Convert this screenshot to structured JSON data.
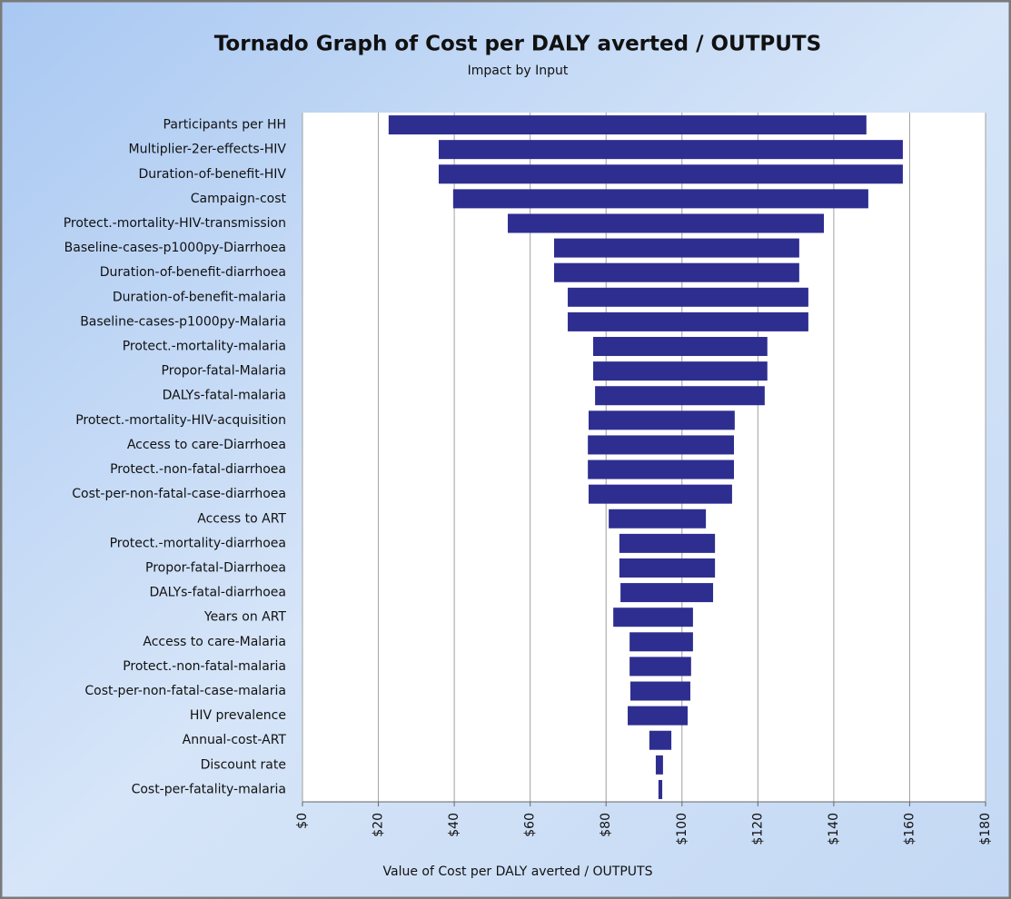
{
  "chart_data": {
    "type": "tornado",
    "title": "Tornado Graph of Cost per DALY averted / OUTPUTS",
    "subtitle": "Impact by Input",
    "x_label": "Value of Cost per DALY averted / OUTPUTS",
    "categories": [
      "Participants per HH",
      "Multiplier-2er-effects-HIV",
      "Duration-of-benefit-HIV",
      "Campaign-cost",
      "Protect.-mortality-HIV-transmission",
      "Baseline-cases-p1000py-Diarrhoea",
      "Duration-of-benefit-diarrhoea",
      "Duration-of-benefit-malaria",
      "Baseline-cases-p1000py-Malaria",
      "Protect.-mortality-malaria",
      "Propor-fatal-Malaria",
      "DALYs-fatal-malaria",
      "Protect.-mortality-HIV-acquisition",
      "Access to care-Diarrhoea",
      "Protect.-non-fatal-diarrhoea",
      "Cost-per-non-fatal-case-diarrhoea",
      "Access to ART",
      "Protect.-mortality-diarrhoea",
      "Propor-fatal-Diarrhoea",
      "DALYs-fatal-diarrhoea",
      "Years on ART",
      "Access to care-Malaria",
      "Protect.-non-fatal-malaria",
      "Cost-per-non-fatal-case-malaria",
      "HIV prevalence",
      "Annual-cost-ART",
      "Discount rate",
      "Cost-per-fatality-malaria"
    ],
    "lows": [
      22.7,
      35.9,
      35.9,
      39.7,
      54.1,
      66.3,
      66.3,
      69.9,
      69.9,
      76.6,
      76.6,
      77.1,
      75.4,
      75.2,
      75.2,
      75.4,
      80.7,
      83.5,
      83.5,
      83.8,
      81.9,
      86.2,
      86.2,
      86.4,
      85.7,
      91.4,
      93.1,
      93.8
    ],
    "highs": [
      148.6,
      158.2,
      158.2,
      149.1,
      137.4,
      130.9,
      130.9,
      133.3,
      133.3,
      122.5,
      122.5,
      121.8,
      113.9,
      113.7,
      113.7,
      113.2,
      106.3,
      108.7,
      108.7,
      108.2,
      102.9,
      102.9,
      102.4,
      102.2,
      101.5,
      97.2,
      95.0,
      94.8
    ],
    "color": "#2e2e90",
    "xlim": [
      0,
      180
    ],
    "xticks": [
      {
        "value": 0,
        "label": "$0"
      },
      {
        "value": 20,
        "label": "$20"
      },
      {
        "value": 40,
        "label": "$40"
      },
      {
        "value": 60,
        "label": "$60"
      },
      {
        "value": 80,
        "label": "$80"
      },
      {
        "value": 100,
        "label": "$100"
      },
      {
        "value": 120,
        "label": "$120"
      },
      {
        "value": 140,
        "label": "$140"
      },
      {
        "value": 160,
        "label": "$160"
      },
      {
        "value": 180,
        "label": "$180"
      }
    ],
    "grid": true
  }
}
